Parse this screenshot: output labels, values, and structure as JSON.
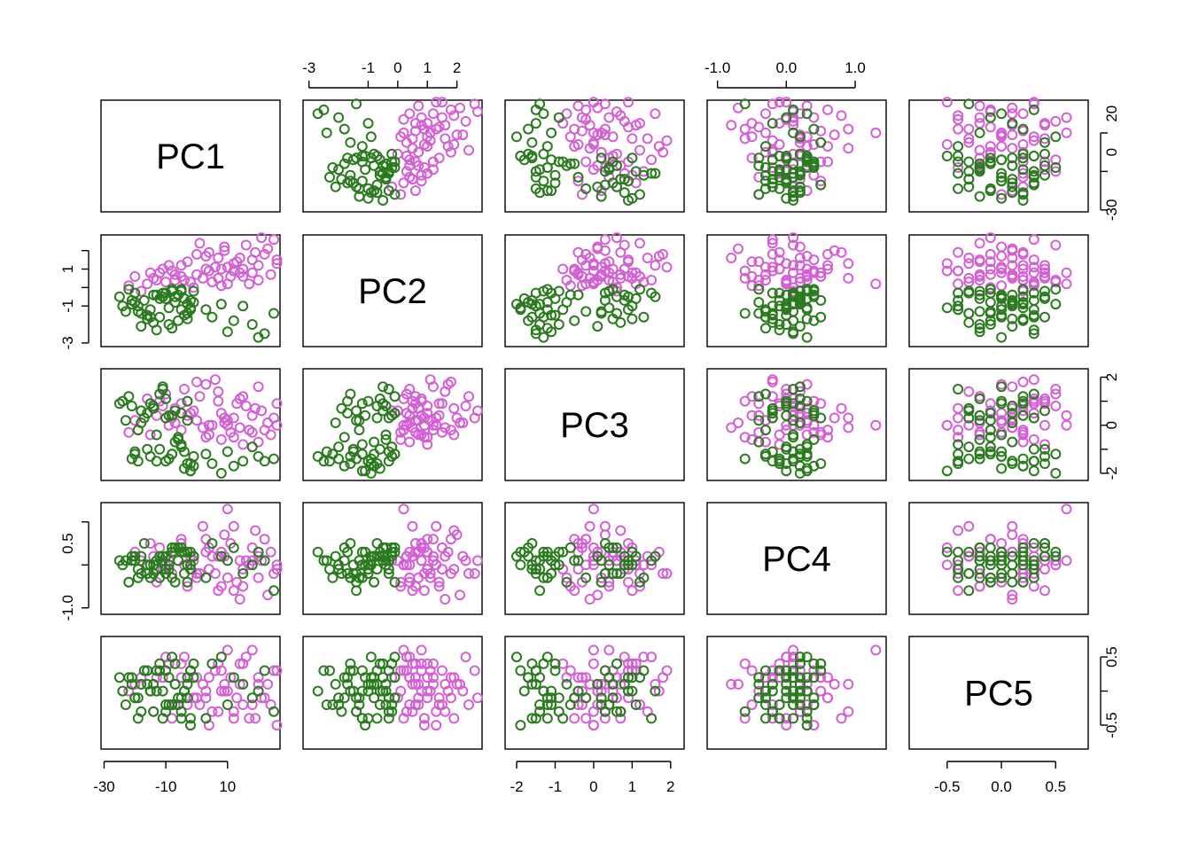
{
  "chart_data": {
    "type": "scatter",
    "title": "",
    "variables": [
      "PC1",
      "PC2",
      "PC3",
      "PC4",
      "PC5"
    ],
    "ranges": {
      "PC1": [
        -31,
        27
      ],
      "PC2": [
        -3.2,
        2.85
      ],
      "PC3": [
        -2.3,
        2.35
      ],
      "PC4": [
        -1.15,
        1.45
      ],
      "PC5": [
        -0.85,
        0.8
      ]
    },
    "ticks": {
      "PC1": [
        -30,
        -10,
        10
      ],
      "PC2": [
        -3,
        -1,
        0,
        1,
        2
      ],
      "PC3": [
        -2,
        -1,
        0,
        1,
        2
      ],
      "PC4": [
        -1.0,
        0.0,
        1.0
      ],
      "PC5": [
        -0.5,
        0.0,
        0.5
      ]
    },
    "tick_labels": {
      "top": [
        {
          "panel": 2,
          "var": "PC2",
          "labels": [
            [
              "-3",
              -3
            ],
            [
              "-1",
              -1
            ],
            [
              "0",
              0
            ],
            [
              "1",
              1
            ],
            [
              "2",
              2
            ]
          ]
        },
        {
          "panel": 4,
          "var": "PC4",
          "labels": [
            [
              "-1.0",
              -1.0
            ],
            [
              "0.0",
              0.0
            ],
            [
              "1.0",
              1.0
            ]
          ]
        }
      ],
      "bottom": [
        {
          "panel": 1,
          "var": "PC1",
          "labels": [
            [
              "-30",
              -30
            ],
            [
              "-10",
              -10
            ],
            [
              "10",
              10
            ]
          ]
        },
        {
          "panel": 3,
          "var": "PC3",
          "labels": [
            [
              "-2",
              -2
            ],
            [
              "-1",
              -1
            ],
            [
              "0",
              0
            ],
            [
              "1",
              1
            ],
            [
              "2",
              2
            ]
          ]
        },
        {
          "panel": 5,
          "var": "PC5",
          "labels": [
            [
              "-0.5",
              -0.5
            ],
            [
              "0.0",
              0.0
            ],
            [
              "0.5",
              0.5
            ]
          ]
        }
      ],
      "left": [
        {
          "panel": 2,
          "var": "PC2",
          "labels": [
            [
              "-3",
              -3
            ],
            [
              "-1",
              -1
            ],
            [
              "1",
              1
            ]
          ]
        },
        {
          "panel": 4,
          "var": "PC4",
          "labels": [
            [
              "-1.0",
              -1.0
            ],
            [
              "0.5",
              0.5
            ]
          ]
        }
      ],
      "right": [
        {
          "panel": 1,
          "var": "PC1",
          "labels": [
            [
              "-30",
              -30
            ],
            [
              "0",
              0
            ],
            [
              "20",
              20
            ]
          ]
        },
        {
          "panel": 3,
          "var": "PC3",
          "labels": [
            [
              "-2",
              -2
            ],
            [
              "0",
              0
            ],
            [
              "2",
              2
            ]
          ]
        },
        {
          "panel": 5,
          "var": "PC5",
          "labels": [
            [
              "-0.5",
              -0.5
            ],
            [
              "0.5",
              0.5
            ]
          ]
        }
      ]
    },
    "colors": {
      "group_1": "#d45fd4",
      "group_2": "#2a7a1e"
    },
    "series": [
      {
        "color": "#d45fd4",
        "points": [
          [
            14,
            0.8,
            1.1,
            0.1,
            0.4
          ],
          [
            20,
            1.2,
            1.6,
            0.2,
            0.1
          ],
          [
            8,
            1.0,
            0.5,
            0.3,
            0.0
          ],
          [
            0,
            0.7,
            0.2,
            -0.3,
            -0.1
          ],
          [
            -5,
            0.6,
            0.9,
            0.5,
            0.4
          ],
          [
            25,
            2.6,
            0.3,
            -0.2,
            0.3
          ],
          [
            18,
            1.5,
            -0.3,
            0.4,
            -0.2
          ],
          [
            4,
            1.9,
            -0.4,
            -0.1,
            0.2
          ],
          [
            -10,
            0.3,
            1.3,
            0.0,
            0.5
          ],
          [
            -14,
            0.5,
            0.7,
            0.2,
            -0.3
          ],
          [
            10,
            0.2,
            0.0,
            1.3,
            0.6
          ],
          [
            22,
            1.8,
            -0.2,
            0.6,
            -0.1
          ],
          [
            -22,
            0.1,
            -0.3,
            -0.4,
            0.0
          ],
          [
            -7,
            0.4,
            0.1,
            0.3,
            -0.2
          ],
          [
            6,
            1.1,
            1.9,
            -0.2,
            0.3
          ],
          [
            -18,
            -0.2,
            0.6,
            0.1,
            0.2
          ],
          [
            12,
            0.9,
            -0.5,
            -0.6,
            -0.4
          ],
          [
            16,
            2.3,
            0.8,
            0.1,
            0.5
          ],
          [
            2,
            0.5,
            -0.1,
            0.9,
            0.1
          ],
          [
            -3,
            1.4,
            0.4,
            -0.5,
            -0.2
          ],
          [
            7,
            1.6,
            1.4,
            0.2,
            -0.3
          ],
          [
            -12,
            0.8,
            1.0,
            0.4,
            0.3
          ],
          [
            20,
            0.4,
            -0.7,
            -0.3,
            0.2
          ],
          [
            26,
            1.3,
            0.0,
            0.0,
            -0.5
          ],
          [
            9,
            2.0,
            0.3,
            0.7,
            0.1
          ],
          [
            -1,
            0.0,
            0.6,
            0.1,
            -0.1
          ],
          [
            15,
            1.0,
            -0.8,
            -0.1,
            0.4
          ],
          [
            3,
            1.7,
            1.7,
            0.3,
            0.0
          ],
          [
            -8,
            0.9,
            0.3,
            -0.2,
            -0.4
          ],
          [
            11,
            0.6,
            -0.3,
            0.5,
            0.2
          ],
          [
            23,
            2.1,
            0.1,
            -0.7,
            0.1
          ],
          [
            -16,
            0.2,
            1.1,
            0.0,
            0.3
          ],
          [
            5,
            0.3,
            0.0,
            0.2,
            -0.3
          ],
          [
            13,
            1.4,
            0.9,
            -0.4,
            -0.1
          ],
          [
            -5,
            1.2,
            -0.2,
            0.6,
            0.2
          ],
          [
            18,
            0.8,
            0.4,
            0.1,
            0.6
          ],
          [
            1,
            2.4,
            1.2,
            -0.2,
            -0.2
          ],
          [
            -20,
            0.6,
            0.2,
            0.3,
            0.1
          ],
          [
            8,
            0.1,
            -0.6,
            -0.5,
            0.3
          ],
          [
            19,
            1.9,
            0.7,
            0.8,
            -0.4
          ],
          [
            -4,
            0.4,
            1.5,
            0.0,
            0.5
          ],
          [
            10,
            1.1,
            0.2,
            -0.3,
            0.0
          ],
          [
            24,
            0.7,
            -0.4,
            0.3,
            -0.2
          ],
          [
            -11,
            1.0,
            0.8,
            -0.1,
            0.2
          ],
          [
            4,
            0.9,
            0.0,
            0.4,
            -0.5
          ],
          [
            14,
            1.6,
            -0.1,
            -0.8,
            0.1
          ],
          [
            -2,
            0.3,
            0.5,
            0.2,
            0.3
          ],
          [
            21,
            2.7,
            0.6,
            0.1,
            -0.1
          ],
          [
            7,
            0.5,
            1.0,
            -0.6,
            0.4
          ],
          [
            -15,
            0.8,
            -0.4,
            0.5,
            0.0
          ],
          [
            12,
            1.3,
            0.3,
            0.9,
            -0.3
          ],
          [
            0,
            1.8,
            1.8,
            -0.2,
            0.2
          ],
          [
            17,
            0.2,
            -0.2,
            0.0,
            -0.4
          ],
          [
            -7,
            0.7,
            0.7,
            0.3,
            0.1
          ],
          [
            26,
            1.5,
            0.9,
            -0.1,
            0.3
          ],
          [
            3,
            1.0,
            -0.5,
            0.6,
            -0.1
          ],
          [
            -13,
            0.4,
            0.4,
            -0.4,
            0.2
          ],
          [
            9,
            2.2,
            0.1,
            0.2,
            0.0
          ],
          [
            15,
            0.6,
            1.2,
            -0.5,
            -0.2
          ],
          [
            -9,
            1.2,
            0.0,
            0.1,
            0.4
          ]
        ]
      },
      {
        "color": "#2a7a1e",
        "points": [
          [
            -20,
            -0.8,
            -1.2,
            0.2,
            -0.1
          ],
          [
            -10,
            -0.3,
            -1.5,
            -0.1,
            0.3
          ],
          [
            -5,
            -1.2,
            -0.8,
            0.3,
            -0.4
          ],
          [
            -25,
            -0.5,
            0.9,
            0.1,
            0.2
          ],
          [
            -15,
            -1.6,
            -1.3,
            -0.3,
            0.0
          ],
          [
            -8,
            -0.2,
            0.4,
            0.4,
            -0.2
          ],
          [
            -3,
            -0.9,
            -1.6,
            0.0,
            0.1
          ],
          [
            -18,
            -1.4,
            0.6,
            -0.2,
            -0.3
          ],
          [
            -12,
            -0.6,
            -1.0,
            0.2,
            0.4
          ],
          [
            -6,
            -1.8,
            -0.5,
            0.1,
            -0.1
          ],
          [
            -22,
            -0.1,
            1.2,
            -0.4,
            0.2
          ],
          [
            -2,
            -1.1,
            -1.9,
            0.3,
            -0.5
          ],
          [
            -14,
            -0.4,
            0.8,
            0.0,
            0.1
          ],
          [
            -9,
            -2.0,
            -1.4,
            -0.1,
            -0.2
          ],
          [
            -17,
            -0.7,
            0.3,
            0.5,
            0.3
          ],
          [
            -4,
            -1.5,
            -1.1,
            -0.2,
            0.0
          ],
          [
            -11,
            -0.3,
            1.5,
            0.1,
            -0.4
          ],
          [
            -1,
            -0.8,
            -1.7,
            0.2,
            0.2
          ],
          [
            -19,
            -1.3,
            -0.2,
            -0.3,
            -0.1
          ],
          [
            -7,
            -0.5,
            0.6,
            0.4,
            0.4
          ],
          [
            -24,
            -1.0,
            1.0,
            0.0,
            0.0
          ],
          [
            -13,
            -2.3,
            -1.5,
            -0.1,
            0.3
          ],
          [
            -5,
            -0.2,
            -0.9,
            0.3,
            -0.3
          ],
          [
            -16,
            -1.7,
            0.5,
            -0.2,
            0.1
          ],
          [
            -10,
            -0.6,
            1.1,
            0.2,
            -0.2
          ],
          [
            -21,
            -0.9,
            -1.4,
            0.1,
            0.2
          ],
          [
            -3,
            -1.4,
            0.2,
            -0.4,
            -0.1
          ],
          [
            -8,
            -0.1,
            -1.2,
            0.3,
            0.5
          ],
          [
            -15,
            -1.2,
            0.9,
            0.0,
            0.0
          ],
          [
            -2,
            -0.7,
            -1.6,
            -0.1,
            -0.4
          ],
          [
            -18,
            -2.1,
            0.1,
            0.2,
            0.1
          ],
          [
            -6,
            -0.4,
            -0.6,
            0.4,
            -0.2
          ],
          [
            -12,
            -1.6,
            1.3,
            -0.3,
            0.3
          ],
          [
            -20,
            -0.3,
            -1.1,
            0.1,
            -0.1
          ],
          [
            -9,
            -1.1,
            0.4,
            0.0,
            0.2
          ],
          [
            -4,
            -0.6,
            -1.8,
            0.3,
            0.0
          ],
          [
            -14,
            -1.9,
            0.7,
            -0.2,
            -0.3
          ],
          [
            -1,
            -0.2,
            -1.3,
            0.2,
            0.4
          ],
          [
            -23,
            -1.3,
            0.2,
            0.1,
            -0.2
          ],
          [
            -7,
            -0.8,
            -0.7,
            -0.4,
            0.1
          ],
          [
            -11,
            -0.5,
            1.6,
            0.2,
            0.0
          ],
          [
            -16,
            -1.5,
            -1.0,
            0.0,
            0.3
          ],
          [
            -5,
            -0.1,
            0.5,
            0.4,
            -0.1
          ],
          [
            -19,
            -1.0,
            -1.5,
            -0.1,
            -0.4
          ],
          [
            -3,
            -1.7,
            1.0,
            0.3,
            0.2
          ],
          [
            -13,
            -0.4,
            -0.4,
            0.1,
            0.0
          ],
          [
            -8,
            -2.2,
            -1.2,
            -0.3,
            -0.2
          ],
          [
            -21,
            -0.7,
            0.8,
            0.2,
            0.1
          ],
          [
            -2,
            -1.2,
            -1.9,
            0.0,
            0.3
          ],
          [
            -10,
            -0.3,
            0.3,
            -0.2,
            -0.3
          ],
          [
            5,
            -1.6,
            -1.6,
            0.5,
            0.4
          ],
          [
            10,
            -2.4,
            -1.1,
            0.1,
            -0.2
          ],
          [
            15,
            -1.0,
            -1.5,
            -0.2,
            0.1
          ],
          [
            20,
            -2.7,
            -1.3,
            0.3,
            0.0
          ],
          [
            25,
            -1.4,
            -1.4,
            -0.6,
            -0.3
          ],
          [
            8,
            -0.9,
            -2.0,
            0.2,
            0.5
          ],
          [
            18,
            -2.0,
            -0.9,
            0.0,
            -0.1
          ],
          [
            12,
            -1.8,
            -1.7,
            0.4,
            0.2
          ],
          [
            3,
            -1.2,
            -1.2,
            -0.3,
            -0.4
          ],
          [
            22,
            -2.5,
            -1.5,
            0.1,
            0.3
          ]
        ]
      }
    ]
  }
}
